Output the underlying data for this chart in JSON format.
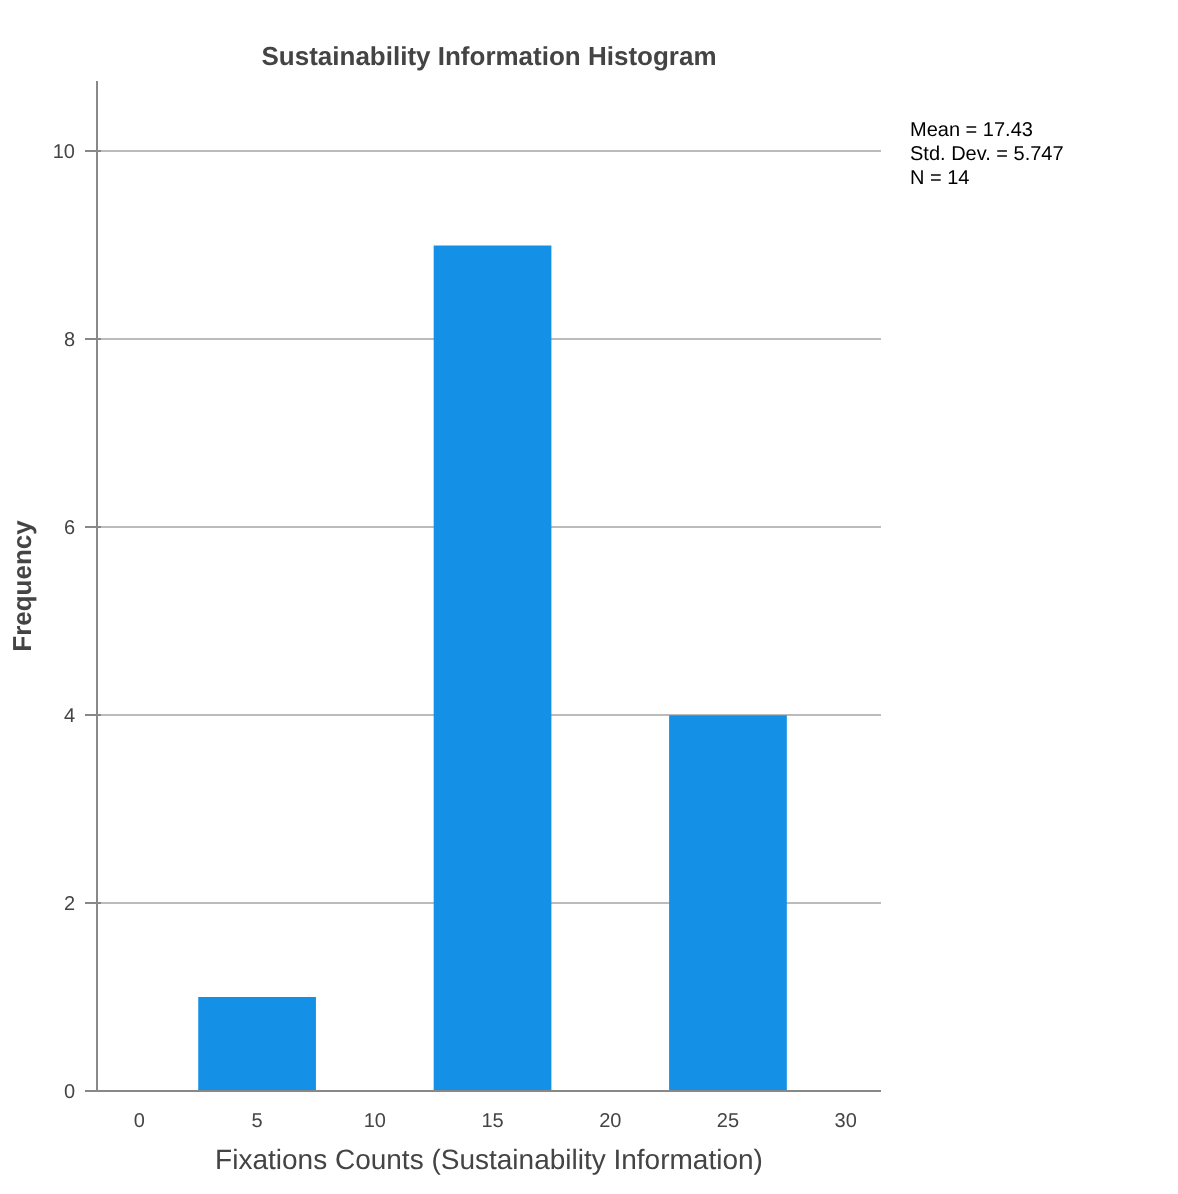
{
  "chart_data": {
    "type": "histogram",
    "title": "Sustainability Information Histogram",
    "xlabel": "Fixations Counts (Sustainability Information)",
    "ylabel": "Frequency",
    "bins": [
      2.5,
      7.5,
      12.5,
      17.5,
      22.5,
      27.5
    ],
    "values": [
      1,
      0,
      9,
      0,
      4
    ],
    "color": "#1491e6",
    "xlim": [
      -1.8,
      31.5
    ],
    "xticks": [
      0,
      5,
      10,
      15,
      20,
      25,
      30
    ],
    "ylim": [
      0,
      10.75
    ],
    "yticks": [
      0,
      2,
      4,
      6,
      8,
      10
    ],
    "grid": "y",
    "annotations": [
      "Mean = 17.43",
      "Std. Dev. = 5.747",
      "N = 14"
    ]
  }
}
